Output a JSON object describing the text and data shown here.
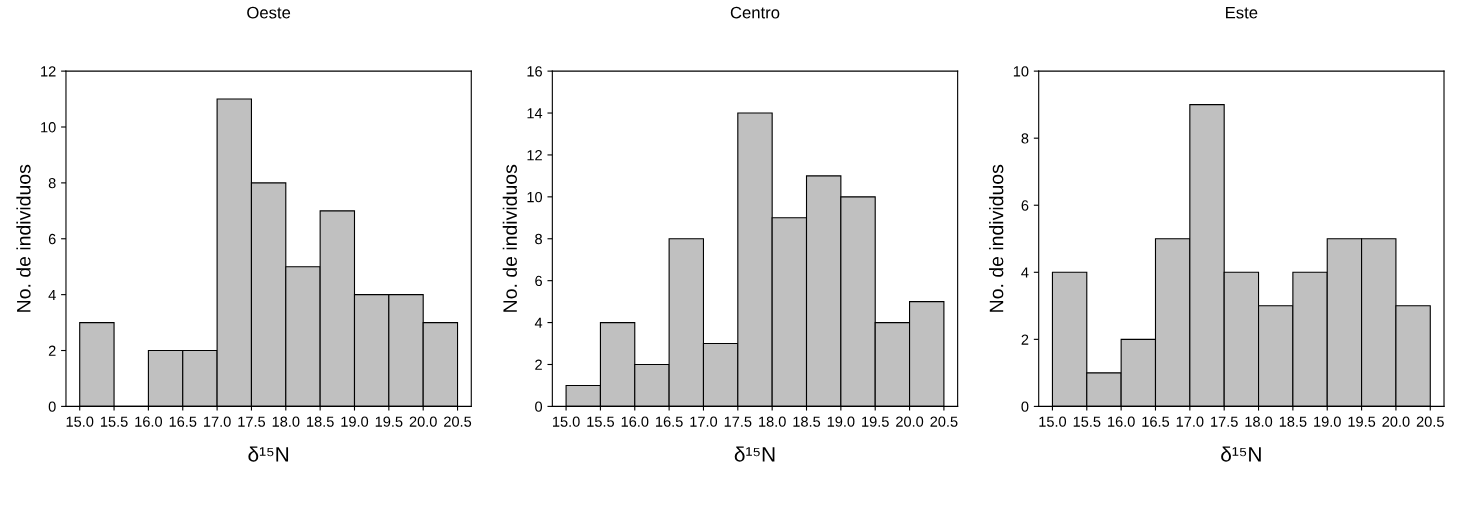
{
  "chart_data": [
    {
      "type": "histogram",
      "title": "Oeste",
      "xlabel": "δ¹⁵N",
      "ylabel": "No. de individuos",
      "bins": [
        15.0,
        15.5,
        16.0,
        16.5,
        17.0,
        17.5,
        18.0,
        18.5,
        19.0,
        19.5,
        20.0,
        20.5
      ],
      "values": [
        3,
        0,
        2,
        2,
        11,
        8,
        5,
        7,
        4,
        4,
        3
      ],
      "color": "#c0c0c0",
      "xlim": [
        14.8,
        20.7
      ],
      "xticks": [
        {
          "value": 15.0,
          "label": "15.0"
        },
        {
          "value": 15.5,
          "label": "15.5"
        },
        {
          "value": 16.0,
          "label": "16.0"
        },
        {
          "value": 16.5,
          "label": "16.5"
        },
        {
          "value": 17.0,
          "label": "17.0"
        },
        {
          "value": 17.5,
          "label": "17.5"
        },
        {
          "value": 18.0,
          "label": "18.0"
        },
        {
          "value": 18.5,
          "label": "18.5"
        },
        {
          "value": 19.0,
          "label": "19.0"
        },
        {
          "value": 19.5,
          "label": "19.5"
        },
        {
          "value": 20.0,
          "label": "20.0"
        },
        {
          "value": 20.5,
          "label": "20.5"
        }
      ],
      "ylim": [
        0,
        12
      ],
      "yticks": [
        0,
        2,
        4,
        6,
        8,
        10,
        12
      ],
      "grid": false
    },
    {
      "type": "histogram",
      "title": "Centro",
      "xlabel": "δ¹⁵N",
      "ylabel": "No. de individuos",
      "bins": [
        15.0,
        15.5,
        16.0,
        16.5,
        17.0,
        17.5,
        18.0,
        18.5,
        19.0,
        19.5,
        20.0,
        20.5
      ],
      "values": [
        1,
        4,
        2,
        8,
        3,
        14,
        9,
        11,
        10,
        4,
        5
      ],
      "color": "#c0c0c0",
      "xlim": [
        14.8,
        20.7
      ],
      "xticks": [
        {
          "value": 15.0,
          "label": "15.0"
        },
        {
          "value": 15.5,
          "label": "15.5"
        },
        {
          "value": 16.0,
          "label": "16.0"
        },
        {
          "value": 16.5,
          "label": "16.5"
        },
        {
          "value": 17.0,
          "label": "17.0"
        },
        {
          "value": 17.5,
          "label": "17.5"
        },
        {
          "value": 18.0,
          "label": "18.0"
        },
        {
          "value": 18.5,
          "label": "18.5"
        },
        {
          "value": 19.0,
          "label": "19.0"
        },
        {
          "value": 19.5,
          "label": "19.5"
        },
        {
          "value": 20.0,
          "label": "20.0"
        },
        {
          "value": 20.5,
          "label": "20.5"
        }
      ],
      "ylim": [
        0,
        16
      ],
      "yticks": [
        0,
        2,
        4,
        6,
        8,
        10,
        12,
        14,
        16
      ],
      "grid": false
    },
    {
      "type": "histogram",
      "title": "Este",
      "xlabel": "δ¹⁵N",
      "ylabel": "No. de individuos",
      "bins": [
        15.0,
        15.5,
        16.0,
        16.5,
        17.0,
        17.5,
        18.0,
        18.5,
        19.0,
        19.5,
        20.0,
        20.5
      ],
      "values": [
        4,
        1,
        2,
        5,
        9,
        4,
        3,
        4,
        5,
        5,
        3
      ],
      "color": "#c0c0c0",
      "xlim": [
        14.8,
        20.7
      ],
      "xticks": [
        {
          "value": 15.0,
          "label": "15.0"
        },
        {
          "value": 15.5,
          "label": "15.5"
        },
        {
          "value": 16.0,
          "label": "16.0"
        },
        {
          "value": 16.5,
          "label": "16.5"
        },
        {
          "value": 17.0,
          "label": "17.0"
        },
        {
          "value": 17.5,
          "label": "17.5"
        },
        {
          "value": 18.0,
          "label": "18.0"
        },
        {
          "value": 18.5,
          "label": "18.5"
        },
        {
          "value": 19.0,
          "label": "19.0"
        },
        {
          "value": 19.5,
          "label": "19.5"
        },
        {
          "value": 20.0,
          "label": "20.0"
        },
        {
          "value": 20.5,
          "label": "20.5"
        }
      ],
      "ylim": [
        0,
        10
      ],
      "yticks": [
        0,
        2,
        4,
        6,
        8,
        10
      ],
      "grid": false
    }
  ]
}
